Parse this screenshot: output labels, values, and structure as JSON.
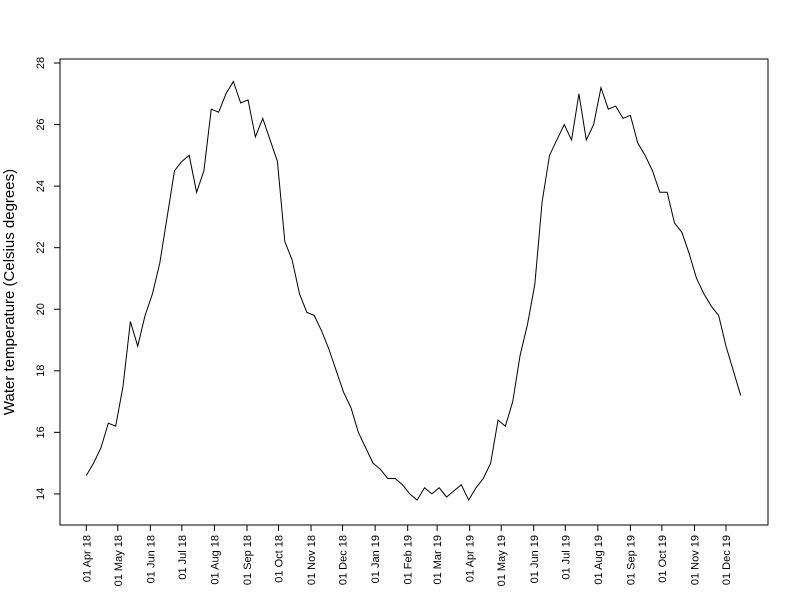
{
  "chart_data": {
    "type": "line",
    "y_label": "Water temperature (Celsius degrees)",
    "color": "#000000",
    "x": [
      "2018-04-01",
      "2018-04-08",
      "2018-04-15",
      "2018-04-22",
      "2018-04-29",
      "2018-05-06",
      "2018-05-13",
      "2018-05-20",
      "2018-05-27",
      "2018-06-03",
      "2018-06-10",
      "2018-06-17",
      "2018-06-24",
      "2018-07-01",
      "2018-07-08",
      "2018-07-15",
      "2018-07-22",
      "2018-07-29",
      "2018-08-05",
      "2018-08-12",
      "2018-08-19",
      "2018-08-26",
      "2018-09-02",
      "2018-09-09",
      "2018-09-16",
      "2018-09-23",
      "2018-09-30",
      "2018-10-07",
      "2018-10-14",
      "2018-10-21",
      "2018-10-28",
      "2018-11-04",
      "2018-11-11",
      "2018-11-18",
      "2018-11-25",
      "2018-12-02",
      "2018-12-09",
      "2018-12-16",
      "2018-12-23",
      "2018-12-30",
      "2019-01-06",
      "2019-01-13",
      "2019-01-20",
      "2019-01-27",
      "2019-02-03",
      "2019-02-10",
      "2019-02-17",
      "2019-02-24",
      "2019-03-03",
      "2019-03-10",
      "2019-03-17",
      "2019-03-24",
      "2019-03-31",
      "2019-04-07",
      "2019-04-14",
      "2019-04-21",
      "2019-04-28",
      "2019-05-05",
      "2019-05-12",
      "2019-05-19",
      "2019-05-26",
      "2019-06-02",
      "2019-06-09",
      "2019-06-16",
      "2019-06-23",
      "2019-06-30",
      "2019-07-07",
      "2019-07-14",
      "2019-07-21",
      "2019-07-28",
      "2019-08-04",
      "2019-08-11",
      "2019-08-18",
      "2019-08-25",
      "2019-09-01",
      "2019-09-08",
      "2019-09-15",
      "2019-09-22",
      "2019-09-29",
      "2019-10-06",
      "2019-10-13",
      "2019-10-20",
      "2019-10-27",
      "2019-11-03",
      "2019-11-10",
      "2019-11-17",
      "2019-11-24",
      "2019-12-01",
      "2019-12-08",
      "2019-12-15"
    ],
    "values": [
      14.6,
      15.0,
      15.5,
      16.3,
      16.2,
      17.5,
      19.6,
      18.8,
      19.8,
      20.5,
      21.5,
      23.0,
      24.5,
      24.8,
      25.0,
      23.8,
      24.5,
      26.5,
      26.4,
      27.0,
      27.4,
      26.7,
      26.8,
      25.6,
      26.2,
      25.5,
      24.8,
      22.2,
      21.6,
      20.5,
      19.9,
      19.8,
      19.3,
      18.7,
      18.0,
      17.3,
      16.8,
      16.0,
      15.5,
      15.0,
      14.8,
      14.5,
      14.5,
      14.3,
      14.0,
      13.8,
      14.2,
      14.0,
      14.2,
      13.9,
      14.1,
      14.3,
      13.8,
      14.2,
      14.5,
      15.0,
      16.4,
      16.2,
      17.0,
      18.5,
      19.5,
      20.8,
      23.5,
      25.0,
      25.5,
      26.0,
      25.5,
      27.0,
      25.5,
      26.0,
      27.2,
      26.5,
      26.6,
      26.2,
      26.3,
      25.4,
      25.0,
      24.5,
      23.8,
      23.8,
      22.8,
      22.5,
      21.8,
      21.0,
      20.5,
      20.1,
      19.8,
      18.8,
      18.0,
      17.2
    ],
    "xlim": [
      "2018-03-07",
      "2020-01-10"
    ],
    "xticks": [
      {
        "value": "2018-04-01",
        "label": "01 Apr 18"
      },
      {
        "value": "2018-05-01",
        "label": "01 May 18"
      },
      {
        "value": "2018-06-01",
        "label": "01 Jun 18"
      },
      {
        "value": "2018-07-01",
        "label": "01 Jul 18"
      },
      {
        "value": "2018-08-01",
        "label": "01 Aug 18"
      },
      {
        "value": "2018-09-01",
        "label": "01 Sep 18"
      },
      {
        "value": "2018-10-01",
        "label": "01 Oct 18"
      },
      {
        "value": "2018-11-01",
        "label": "01 Nov 18"
      },
      {
        "value": "2018-12-01",
        "label": "01 Dec 18"
      },
      {
        "value": "2019-01-01",
        "label": "01 Jan 19"
      },
      {
        "value": "2019-02-01",
        "label": "01 Feb 19"
      },
      {
        "value": "2019-03-01",
        "label": "01 Mar 19"
      },
      {
        "value": "2019-04-01",
        "label": "01 Apr 19"
      },
      {
        "value": "2019-05-01",
        "label": "01 May 19"
      },
      {
        "value": "2019-06-01",
        "label": "01 Jun 19"
      },
      {
        "value": "2019-07-01",
        "label": "01 Jul 19"
      },
      {
        "value": "2019-08-01",
        "label": "01 Aug 19"
      },
      {
        "value": "2019-09-01",
        "label": "01 Sep 19"
      },
      {
        "value": "2019-10-01",
        "label": "01 Oct 19"
      },
      {
        "value": "2019-11-01",
        "label": "01 Nov 19"
      },
      {
        "value": "2019-12-01",
        "label": "01 Dec 19"
      }
    ],
    "ylim": [
      12.99,
      28.13
    ],
    "yticks": [
      14,
      16,
      18,
      20,
      22,
      24,
      26,
      28
    ]
  }
}
